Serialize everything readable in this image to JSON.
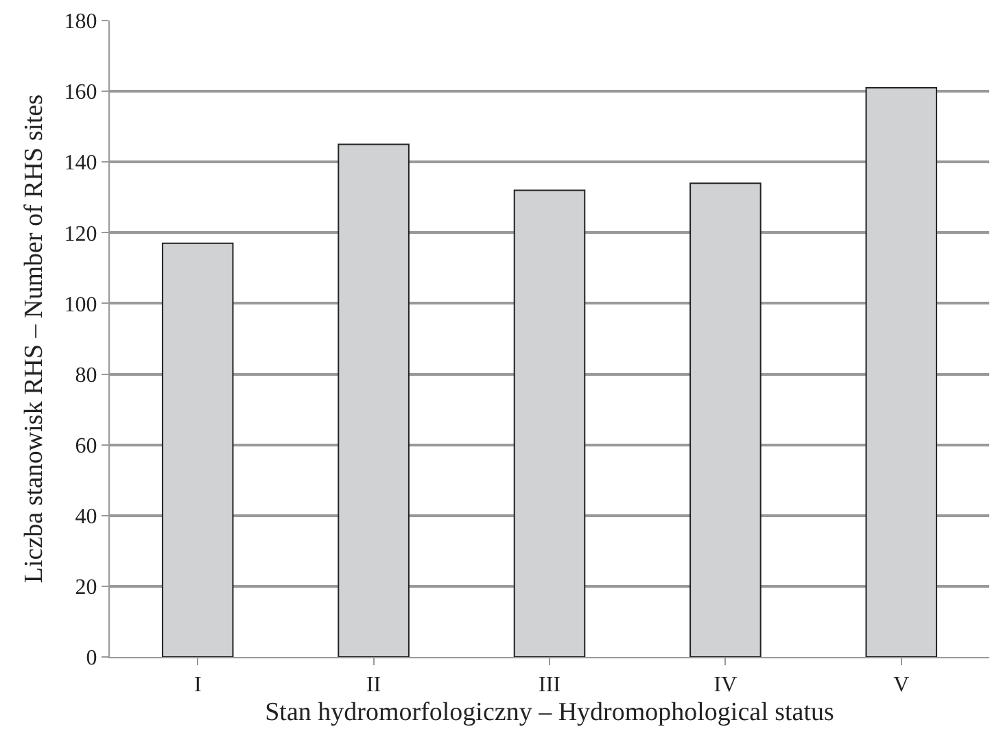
{
  "chart_data": {
    "type": "bar",
    "xlabel": "Stan hydromorfologiczny – Hydromophological status",
    "ylabel": "Liczba stanowisk RHS – Number of RHS sites",
    "categories": [
      "I",
      "II",
      "III",
      "IV",
      "V"
    ],
    "values": [
      117,
      145,
      132,
      134,
      161
    ],
    "color": "#d1d2d4",
    "ylim": [
      0,
      180
    ],
    "yticks": [
      0,
      20,
      40,
      60,
      80,
      100,
      120,
      140,
      160,
      180
    ],
    "grid": "y"
  }
}
